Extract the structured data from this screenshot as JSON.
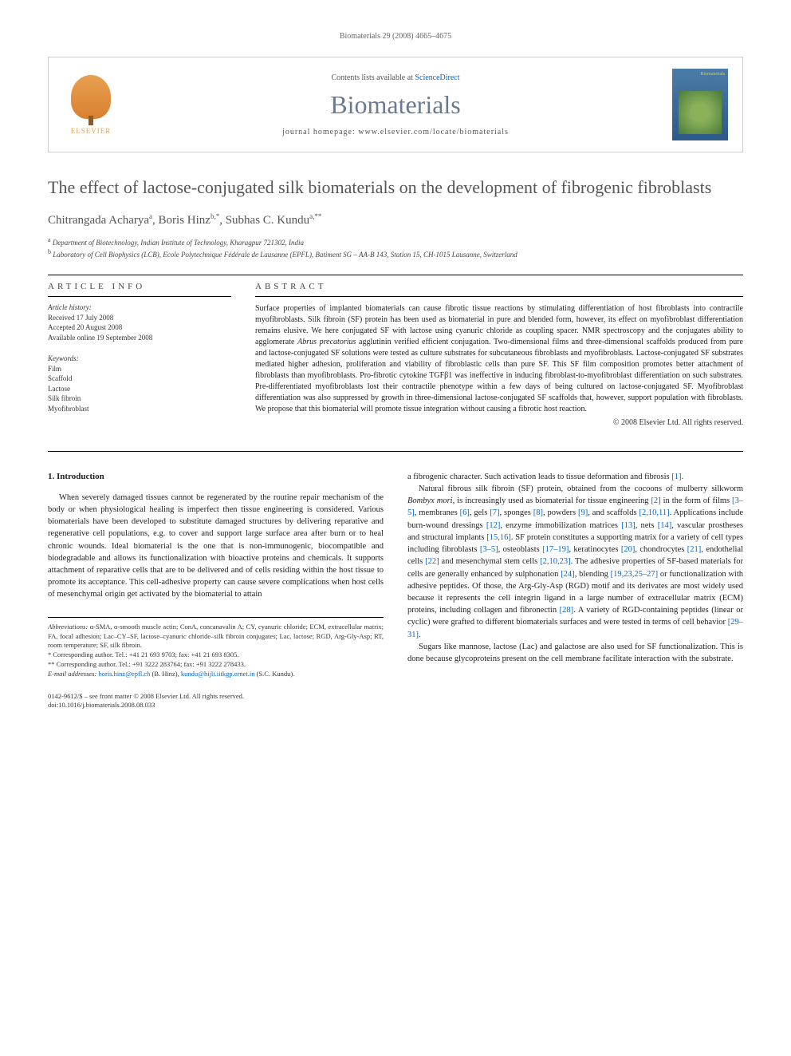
{
  "running_header": "Biomaterials 29 (2008) 4665–4675",
  "journal_box": {
    "contents_prefix": "Contents lists available at ",
    "contents_link": "ScienceDirect",
    "journal_name": "Biomaterials",
    "homepage_prefix": "journal homepage: ",
    "homepage_url": "www.elsevier.com/locate/biomaterials",
    "publisher_name": "ELSEVIER",
    "cover_label": "Biomaterials"
  },
  "article": {
    "title": "The effect of lactose-conjugated silk biomaterials on the development of fibrogenic fibroblasts",
    "authors_html": "Chitrangada Acharya",
    "author1_sup": "a",
    "author2": ", Boris Hinz",
    "author2_sup": "b,*",
    "author3": ", Subhas C. Kundu",
    "author3_sup": "a,**",
    "affiliations": [
      {
        "sup": "a",
        "text": "Department of Biotechnology, Indian Institute of Technology, Kharagpur 721302, India"
      },
      {
        "sup": "b",
        "text": "Laboratory of Cell Biophysics (LCB), Ecole Polytechnique Fédérale de Lausanne (EPFL), Batiment SG – AA-B 143, Station 15, CH-1015 Lausanne, Switzerland"
      }
    ]
  },
  "info": {
    "heading": "ARTICLE INFO",
    "history_label": "Article history:",
    "history": [
      "Received 17 July 2008",
      "Accepted 20 August 2008",
      "Available online 19 September 2008"
    ],
    "keywords_label": "Keywords:",
    "keywords": [
      "Film",
      "Scaffold",
      "Lactose",
      "Silk fibroin",
      "Myofibroblast"
    ]
  },
  "abstract": {
    "heading": "ABSTRACT",
    "text": "Surface properties of implanted biomaterials can cause fibrotic tissue reactions by stimulating differentiation of host fibroblasts into contractile myofibroblasts. Silk fibroin (SF) protein has been used as biomaterial in pure and blended form, however, its effect on myofibroblast differentiation remains elusive. We here conjugated SF with lactose using cyanuric chloride as coupling spacer. NMR spectroscopy and the conjugates ability to agglomerate Abrus precatorius agglutinin verified efficient conjugation. Two-dimensional films and three-dimensional scaffolds produced from pure and lactose-conjugated SF solutions were tested as culture substrates for subcutaneous fibroblasts and myofibroblasts. Lactose-conjugated SF substrates mediated higher adhesion, proliferation and viability of fibroblastic cells than pure SF. This SF film composition promotes better attachment of fibroblasts than myofibroblasts. Pro-fibrotic cytokine TGFβ1 was ineffective in inducing fibroblast-to-myofibroblast differentiation on such substrates. Pre-differentiated myofibroblasts lost their contractile phenotype within a few days of being cultured on lactose-conjugated SF. Myofibroblast differentiation was also suppressed by growth in three-dimensional lactose-conjugated SF scaffolds that, however, support population with fibroblasts. We propose that this biomaterial will promote tissue integration without causing a fibrotic host reaction.",
    "copyright": "© 2008 Elsevier Ltd. All rights reserved."
  },
  "body": {
    "section_number": "1.",
    "section_title": "Introduction",
    "col1_p1": "When severely damaged tissues cannot be regenerated by the routine repair mechanism of the body or when physiological healing is imperfect then tissue engineering is considered. Various biomaterials have been developed to substitute damaged structures by delivering reparative and regenerative cell populations, e.g. to cover and support large surface area after burn or to heal chronic wounds. Ideal biomaterial is the one that is non-immunogenic, biocompatible and biodegradable and allows its functionalization with bioactive proteins and chemicals. It supports attachment of reparative cells that are to be delivered and of cells residing within the host tissue to promote its acceptance. This cell-adhesive property can cause severe complications when host cells of mesenchymal origin get activated by the biomaterial to attain",
    "col2_p1": "a fibrogenic character. Such activation leads to tissue deformation and fibrosis [1].",
    "col2_p2": "Natural fibrous silk fibroin (SF) protein, obtained from the cocoons of mulberry silkworm Bombyx mori, is increasingly used as biomaterial for tissue engineering [2] in the form of films [3–5], membranes [6], gels [7], sponges [8], powders [9], and scaffolds [2,10,11]. Applications include burn-wound dressings [12], enzyme immobilization matrices [13], nets [14], vascular prostheses and structural implants [15,16]. SF protein constitutes a supporting matrix for a variety of cell types including fibroblasts [3–5], osteoblasts [17–19], keratinocytes [20], chondrocytes [21], endothelial cells [22] and mesenchymal stem cells [2,10,23]. The adhesive properties of SF-based materials for cells are generally enhanced by sulphonation [24], blending [19,23,25–27] or functionalization with adhesive peptides. Of those, the Arg-Gly-Asp (RGD) motif and its derivates are most widely used because it represents the cell integrin ligand in a large number of extracellular matrix (ECM) proteins, including collagen and fibronectin [28]. A variety of RGD-containing peptides (linear or cyclic) were grafted to different biomaterials surfaces and were tested in terms of cell behavior [29–31].",
    "col2_p3": "Sugars like mannose, lactose (Lac) and galactose are also used for SF functionalization. This is done because glycoproteins present on the cell membrane facilitate interaction with the substrate."
  },
  "footer": {
    "abbrev_label": "Abbreviations:",
    "abbrev_text": " α-SMA, α-smooth muscle actin; ConA, concanavalin A; CY, cyanuric chloride; ECM, extracellular matrix; FA, focal adhesion; Lac–CY–SF, lactose–cyanuric chloride–silk fibroin conjugates; Lac, lactose; RGD, Arg-Gly-Asp; RT, room temperature; SF, silk fibroin.",
    "corr1": "* Corresponding author. Tel.: +41 21 693 9703; fax: +41 21 693 8305.",
    "corr2": "** Corresponding author. Tel.: +91 3222 283764; fax: +91 3222 278433.",
    "email_label": "E-mail addresses:",
    "email1": "boris.hinz@epfl.ch",
    "email1_name": " (B. Hinz), ",
    "email2": "kundu@hijli.iitkgp.ernet.in",
    "email2_name": " (S.C. Kundu)."
  },
  "page_footer": {
    "line1": "0142-9612/$ – see front matter © 2008 Elsevier Ltd. All rights reserved.",
    "line2": "doi:10.1016/j.biomaterials.2008.08.033"
  },
  "colors": {
    "journal_title": "#6b7a8f",
    "link": "#0066cc",
    "text": "#333333",
    "publisher": "#e8a050",
    "cover_bg": "#4a7ba6"
  },
  "typography": {
    "body_fontsize": 10.5,
    "title_fontsize": 22,
    "journal_fontsize": 32,
    "info_fontsize": 9,
    "abstract_fontsize": 10
  }
}
